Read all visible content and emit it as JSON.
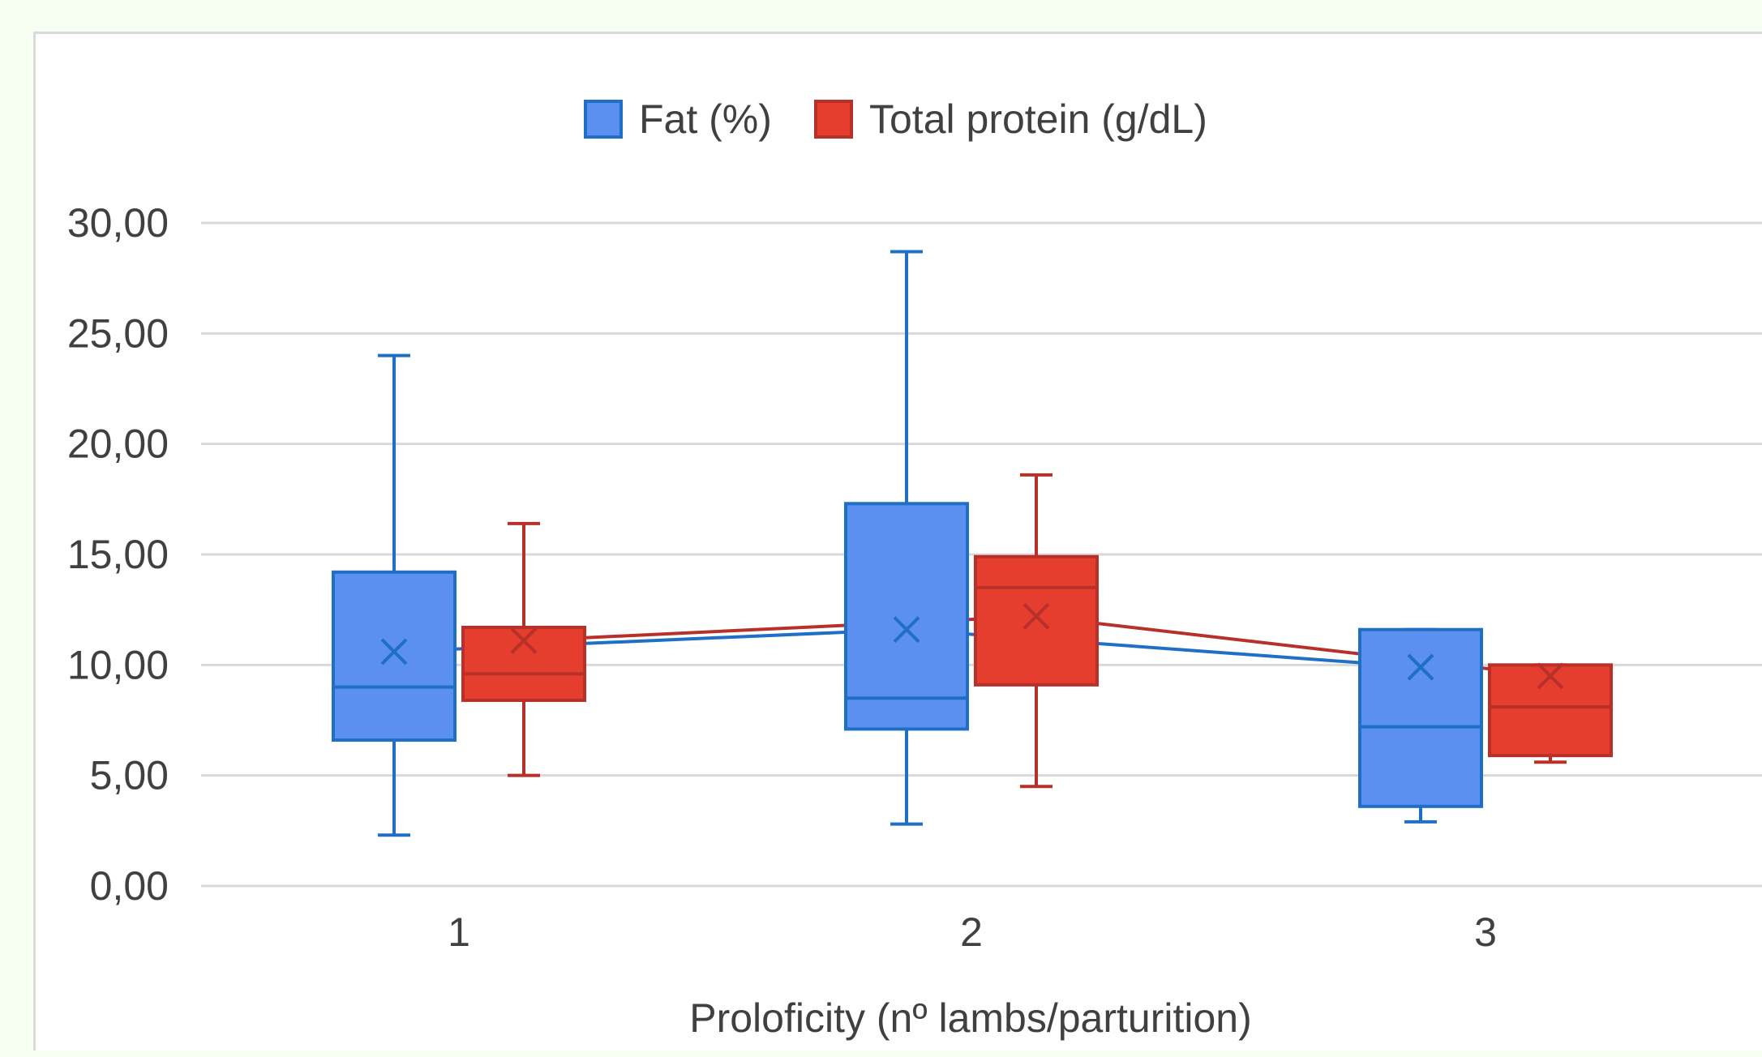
{
  "chart_data": {
    "type": "box",
    "title": "",
    "xlabel": "Proloficity (nº lambs/parturition)",
    "ylabel": "",
    "ylim": [
      0,
      30
    ],
    "y_ticks": [
      "0,00",
      "5,00",
      "10,00",
      "15,00",
      "20,00",
      "25,00",
      "30,00"
    ],
    "y_tick_values": [
      0,
      5,
      10,
      15,
      20,
      25,
      30
    ],
    "categories": [
      "1",
      "2",
      "3"
    ],
    "grid": true,
    "legend_position": "top",
    "series": [
      {
        "name": "Fat (%)",
        "color": "#5b8ff0",
        "edge_color": "#1f6fc5",
        "boxes": [
          {
            "min": 2.3,
            "q1": 6.6,
            "median": 9.0,
            "q3": 14.2,
            "max": 24.0,
            "mean": 10.6
          },
          {
            "min": 2.8,
            "q1": 7.1,
            "median": 8.5,
            "q3": 17.3,
            "max": 28.7,
            "mean": 11.6
          },
          {
            "min": 2.9,
            "q1": 3.6,
            "median": 7.2,
            "q3": 11.6,
            "max": 11.6,
            "mean": 9.9
          }
        ]
      },
      {
        "name": "Total protein (g/dL)",
        "color": "#e53d2e",
        "edge_color": "#b7312a",
        "boxes": [
          {
            "min": 5.0,
            "q1": 8.4,
            "median": 9.6,
            "q3": 11.7,
            "max": 16.4,
            "mean": 11.1
          },
          {
            "min": 4.5,
            "q1": 9.1,
            "median": 13.5,
            "q3": 14.9,
            "max": 18.6,
            "mean": 12.2
          },
          {
            "min": 5.6,
            "q1": 5.9,
            "median": 8.1,
            "q3": 10.0,
            "max": 10.0,
            "mean": 9.5
          }
        ]
      }
    ]
  }
}
